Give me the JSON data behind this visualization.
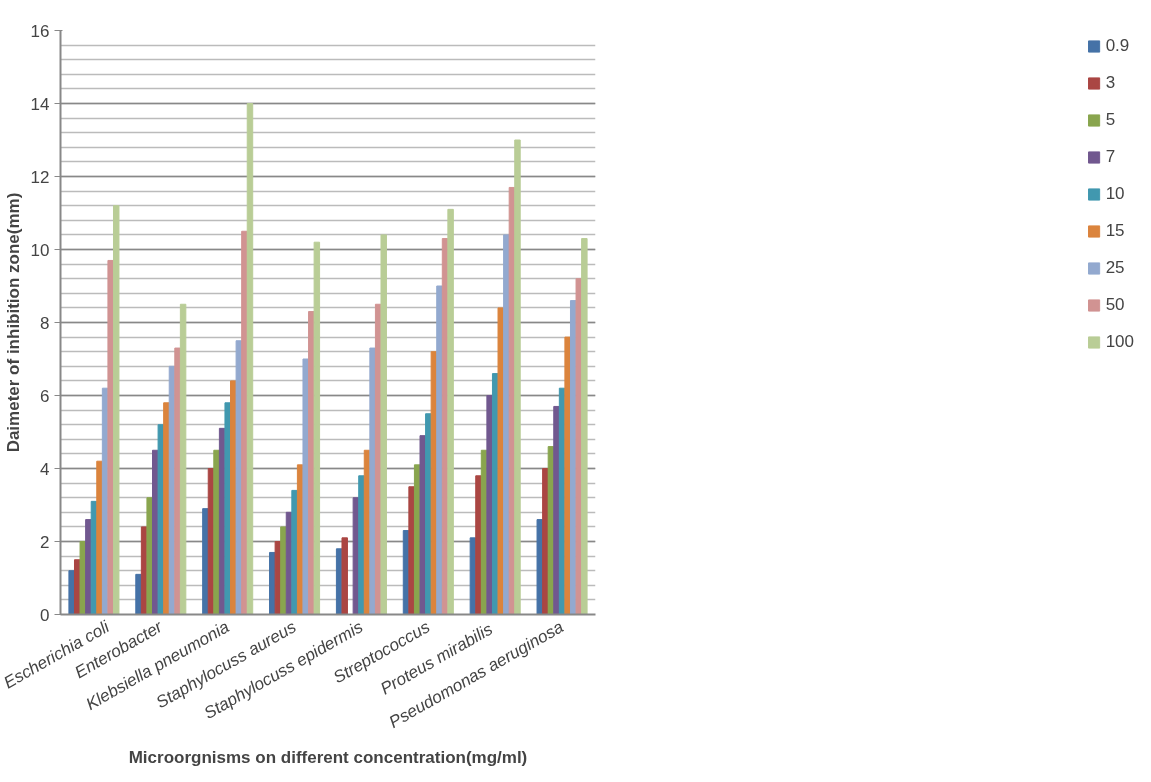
{
  "chart_data": {
    "type": "bar",
    "xlabel": "Microorgnisms on different concentration(mg/ml)",
    "ylabel": "Daimeter of inhibition zone(mm)",
    "categories": [
      "Escherichia coli",
      "Enterobacter",
      "Klebsiella pneumonia",
      "Staphylocuss aureus",
      "Staphylocuss epidermis",
      "Streptococcus",
      "Proteus  mirabilis",
      "Pseudomonas aeruginosa"
    ],
    "series": [
      {
        "name": "0.9",
        "color": "#4572a7",
        "values": [
          1.2,
          1.1,
          2.9,
          1.7,
          1.8,
          2.3,
          2.1,
          2.6
        ]
      },
      {
        "name": "3",
        "color": "#aa4643",
        "values": [
          1.5,
          2.4,
          4.0,
          2.0,
          2.1,
          3.5,
          3.8,
          4.0
        ]
      },
      {
        "name": "5",
        "color": "#89a54e",
        "values": [
          2.0,
          3.2,
          4.5,
          2.4,
          null,
          4.1,
          4.5,
          4.6
        ]
      },
      {
        "name": "7",
        "color": "#71588f",
        "values": [
          2.6,
          4.5,
          5.1,
          2.8,
          3.2,
          4.9,
          6.0,
          5.7
        ]
      },
      {
        "name": "10",
        "color": "#4198af",
        "values": [
          3.1,
          5.2,
          5.8,
          3.4,
          3.8,
          5.5,
          6.6,
          6.2
        ]
      },
      {
        "name": "15",
        "color": "#db843d",
        "values": [
          4.2,
          5.8,
          6.4,
          4.1,
          4.5,
          7.2,
          8.4,
          7.6
        ]
      },
      {
        "name": "25",
        "color": "#93a9cf",
        "values": [
          6.2,
          6.8,
          7.5,
          7.0,
          7.3,
          9.0,
          10.4,
          8.6
        ]
      },
      {
        "name": "50",
        "color": "#d19392",
        "values": [
          9.7,
          7.3,
          10.5,
          8.3,
          8.5,
          10.3,
          11.7,
          9.2
        ]
      },
      {
        "name": "100",
        "color": "#b9cd96",
        "values": [
          11.2,
          8.5,
          14.0,
          10.2,
          10.4,
          11.1,
          13.0,
          10.3
        ]
      }
    ],
    "ylim": [
      0,
      16
    ],
    "yticks": [
      0,
      2,
      4,
      6,
      8,
      10,
      12,
      14,
      16
    ],
    "grid": "y",
    "legend": "right"
  }
}
